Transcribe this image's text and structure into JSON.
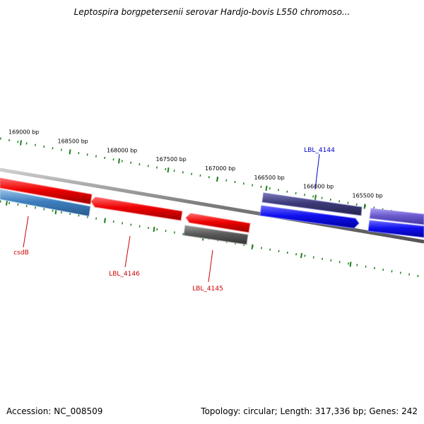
{
  "title": "Leptospira borgpetersenii serovar Hardjo-bovis L550 chromoso...",
  "footer": {
    "accession": "Accession: NC_008509",
    "summary": "Topology: circular; Length: 317,336 bp; Genes: 242"
  },
  "colors": {
    "backbone": "#7a7a7a",
    "tick": "#1e7f1e",
    "red_feature": "#ee0000",
    "blue_feature": "#1010ee",
    "steelblue_feature": "#3f7fbf",
    "gray_feature": "#5a5a5a",
    "darkslate_feature": "#3c3a78",
    "slateblue_feature": "#6a5acd",
    "red_label": "#cc0000",
    "blue_label": "#0000cc"
  },
  "ticks": [
    {
      "position_bp": 169000,
      "label": "169000 bp"
    },
    {
      "position_bp": 168500,
      "label": "168500 bp"
    },
    {
      "position_bp": 168000,
      "label": "168000 bp"
    },
    {
      "position_bp": 167500,
      "label": "167500 bp"
    },
    {
      "position_bp": 167000,
      "label": "167000 bp"
    },
    {
      "position_bp": 166500,
      "label": "166500 bp"
    },
    {
      "position_bp": 166000,
      "label": "166000 bp"
    },
    {
      "position_bp": 165500,
      "label": "165500 bp"
    }
  ],
  "features": [
    {
      "name": "red-feature-1",
      "color": "red_feature",
      "strand": "forward",
      "label": ""
    },
    {
      "name": "red-feature-lbl-4146",
      "color": "red_feature",
      "strand": "forward",
      "label": "LBL_4146"
    },
    {
      "name": "red-feature-lbl-4145",
      "color": "red_feature",
      "strand": "forward",
      "label": "LBL_4145"
    },
    {
      "name": "steelblue-feature-csdb",
      "color": "steelblue_feature",
      "strand": "reverse",
      "label": "csdB"
    },
    {
      "name": "gray-feature",
      "color": "gray_feature",
      "strand": "reverse",
      "label": ""
    },
    {
      "name": "darkslate-feature-lbl-4144",
      "color": "darkslate_feature",
      "strand": "forward",
      "label": "LBL_4144"
    },
    {
      "name": "blue-feature-1",
      "color": "blue_feature",
      "strand": "reverse",
      "label": ""
    },
    {
      "name": "slateblue-feature",
      "color": "slateblue_feature",
      "strand": "forward",
      "label": ""
    },
    {
      "name": "blue-feature-2",
      "color": "blue_feature",
      "strand": "reverse",
      "label": ""
    }
  ]
}
